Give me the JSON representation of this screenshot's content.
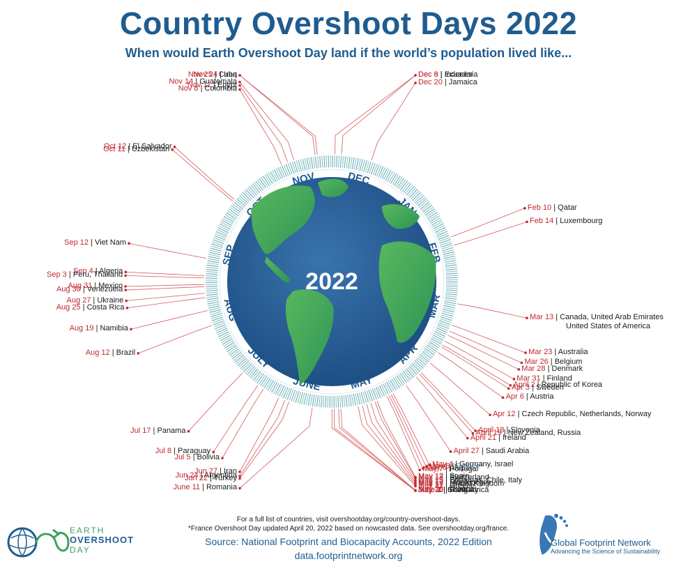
{
  "title": "Country Overshoot Days 2022",
  "subtitle": "When would Earth Overshoot Day land if the world’s population lived like...",
  "center_label": "2022",
  "months": [
    "JAN",
    "FEB",
    "MAR",
    "APR",
    "MAY",
    "JUNE",
    "JULY",
    "AUG",
    "SEP",
    "OCT",
    "NOV",
    "DEC"
  ],
  "entries": [
    {
      "date": "Dec 20",
      "country": "Jamaica",
      "doy": 354
    },
    {
      "date": "Dec 6",
      "country": "Ecuador",
      "doy": 340
    },
    {
      "date": "Dec 3",
      "country": "Indonesia",
      "doy": 337
    },
    {
      "date": "Nov 25",
      "country": "Cuba",
      "doy": 329
    },
    {
      "date": "Nov 24",
      "country": "Iraq",
      "doy": 328
    },
    {
      "date": "Nov 14",
      "country": "Guatemala",
      "doy": 318
    },
    {
      "date": "Nov 11",
      "country": "Egypt",
      "doy": 315
    },
    {
      "date": "Nov 8",
      "country": "Colombia",
      "doy": 312
    },
    {
      "date": "Oct 12",
      "country": "El Salvador",
      "doy": 285
    },
    {
      "date": "Oct 11",
      "country": "Uzbekistan",
      "doy": 284
    },
    {
      "date": "Sep 12",
      "country": "Viet Nam",
      "doy": 255
    },
    {
      "date": "Sep 4",
      "country": "Algeria",
      "doy": 247
    },
    {
      "date": "Sep 3",
      "country": "Peru, Thailand",
      "doy": 246
    },
    {
      "date": "Aug 31",
      "country": "Mexico",
      "doy": 243
    },
    {
      "date": "Aug 30",
      "country": "Venezuela",
      "doy": 242
    },
    {
      "date": "Aug 27",
      "country": "Ukraine",
      "doy": 239
    },
    {
      "date": "Aug 25",
      "country": "Costa Rica",
      "doy": 237
    },
    {
      "date": "Aug 19",
      "country": "Namibia",
      "doy": 231
    },
    {
      "date": "Aug 12",
      "country": "Brazil",
      "doy": 224
    },
    {
      "date": "Jul 17",
      "country": "Panama",
      "doy": 198
    },
    {
      "date": "Jul 8",
      "country": "Paraguay",
      "doy": 189
    },
    {
      "date": "Jul 5",
      "country": "Bolivia",
      "doy": 186
    },
    {
      "date": "Jun 27",
      "country": "Iran",
      "doy": 178
    },
    {
      "date": "Jun 24",
      "country": "Argentina",
      "doy": 175
    },
    {
      "date": "Jun 22",
      "country": "Turkey",
      "doy": 173
    },
    {
      "date": "June 11",
      "country": "Romania",
      "doy": 162
    },
    {
      "date": "June 2",
      "country": "China",
      "doy": 153
    },
    {
      "date": "June 1",
      "country": "South Africa",
      "doy": 152
    },
    {
      "date": "May 30",
      "country": "Hungary",
      "doy": 150
    },
    {
      "date": "May 29",
      "country": "Croatia",
      "doy": 149
    },
    {
      "date": "May 21",
      "country": "Greece",
      "doy": 141
    },
    {
      "date": "May 19",
      "country": "United Kingdom",
      "doy": 139
    },
    {
      "date": "May 17",
      "country": "Montenegro",
      "doy": 137
    },
    {
      "date": "May 15",
      "country": "Bahamas, Chile, Italy",
      "doy": 135
    },
    {
      "date": "May 13",
      "country": "Switzerland",
      "doy": 133
    },
    {
      "date": "May 12",
      "country": "Spain",
      "doy": 132
    },
    {
      "date": "May 7",
      "country": "Portugal",
      "doy": 127
    },
    {
      "date": "May 6",
      "country": "Japan",
      "doy": 126
    },
    {
      "date": "May 5",
      "country": "France*",
      "doy": 125
    },
    {
      "date": "May 4",
      "country": "Germany, Israel",
      "doy": 124
    },
    {
      "date": "April 27",
      "country": "Saudi Arabia",
      "doy": 117
    },
    {
      "date": "April 21",
      "country": "Ireland",
      "doy": 111
    },
    {
      "date": "April 19",
      "country": "New Zealand, Russia",
      "doy": 109
    },
    {
      "date": "April 18",
      "country": "Slovenia",
      "doy": 108
    },
    {
      "date": "Apr 12",
      "country": "Czech Republic, Netherlands, Norway",
      "doy": 102
    },
    {
      "date": "Apr 6",
      "country": "Austria",
      "doy": 96
    },
    {
      "date": "Apr 3",
      "country": "Sweden",
      "doy": 93
    },
    {
      "date": "April 2",
      "country": "Republic of Korea",
      "doy": 92
    },
    {
      "date": "Mar 31",
      "country": "Finland",
      "doy": 90
    },
    {
      "date": "Mar 28",
      "country": "Denmark",
      "doy": 87
    },
    {
      "date": "Mar 26",
      "country": "Belgium",
      "doy": 85
    },
    {
      "date": "Mar 23",
      "country": "Australia",
      "doy": 82
    },
    {
      "date": "Mar 13",
      "country": "Canada, United Arab Emirates",
      "country2": "United States of America",
      "doy": 72
    },
    {
      "date": "Feb 14",
      "country": "Luxembourg",
      "doy": 45
    },
    {
      "date": "Feb 10",
      "country": "Qatar",
      "doy": 41
    }
  ],
  "footnote_line1": "For a full list of countries, visit overshootday.org/country-overshoot-days.",
  "footnote_line2": "*France Overshoot Day updated April 20, 2022 based on nowcasted data. See overshootday.org/france.",
  "source_line1": "Source: National Footprint and Biocapacity Accounts, 2022 Edition",
  "source_line2": "data.footprintnetwork.org",
  "logo_left": {
    "line1": "EARTH",
    "line2": "OVERSHOOT",
    "line3": "DAY"
  },
  "logo_right": {
    "name": "Global Footprint Network",
    "tagline": "Advancing the Science of Sustainability"
  },
  "colors": {
    "title": "#1f5c8f",
    "date": "#c0272d",
    "leader": "#c0272d",
    "ocean": "#2b5f98",
    "land": "#3aa35b",
    "tick": "#6fb5a0"
  }
}
